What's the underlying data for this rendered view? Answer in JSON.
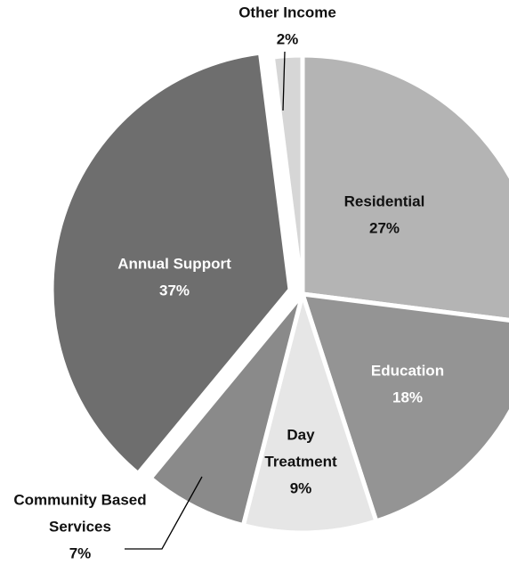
{
  "colors": {
    "background": "#ffffff",
    "dark_text": "#111111",
    "light_text": "#ffffff"
  },
  "chart_data": {
    "type": "pie",
    "title": "",
    "start_angle_deg": 0,
    "direction": "clockwise",
    "slices": [
      {
        "label": "Residential",
        "value": 27,
        "value_label": "27%",
        "color": "#b4b4b4",
        "label_color": "dark"
      },
      {
        "label": "Education",
        "value": 18,
        "value_label": "18%",
        "color": "#949494",
        "label_color": "light"
      },
      {
        "label": "Day Treatment",
        "label_lines": [
          "Day",
          "Treatment"
        ],
        "value": 9,
        "value_label": "9%",
        "color": "#e6e6e6",
        "label_color": "dark"
      },
      {
        "label": "Community Based Services",
        "label_lines": [
          "Community Based",
          "Services"
        ],
        "value": 7,
        "value_label": "7%",
        "color": "#8a8a8a",
        "label_color": "dark",
        "label_outside": true
      },
      {
        "label": "Annual Support",
        "value": 37,
        "value_label": "37%",
        "color": "#6e6e6e",
        "label_color": "light"
      },
      {
        "label": "Other Income",
        "value": 2,
        "value_label": "2%",
        "color": "#d6d6d6",
        "label_color": "dark",
        "label_outside": true
      }
    ]
  }
}
